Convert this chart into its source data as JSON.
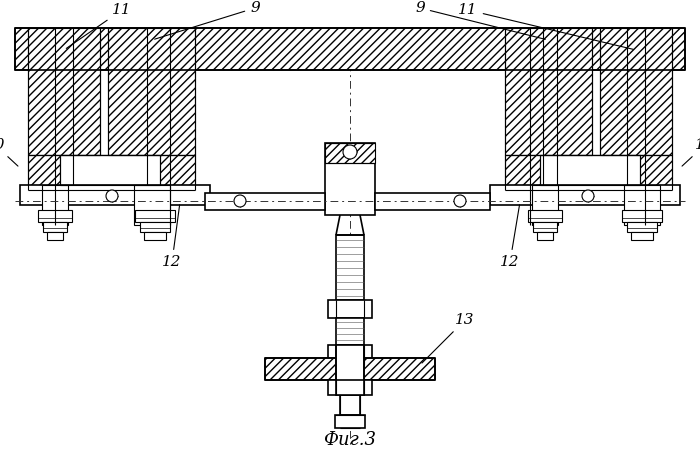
{
  "bg": "#ffffff",
  "lc": "#000000",
  "caption": "Фиг.3",
  "lw": 1.2,
  "lt": 0.8
}
